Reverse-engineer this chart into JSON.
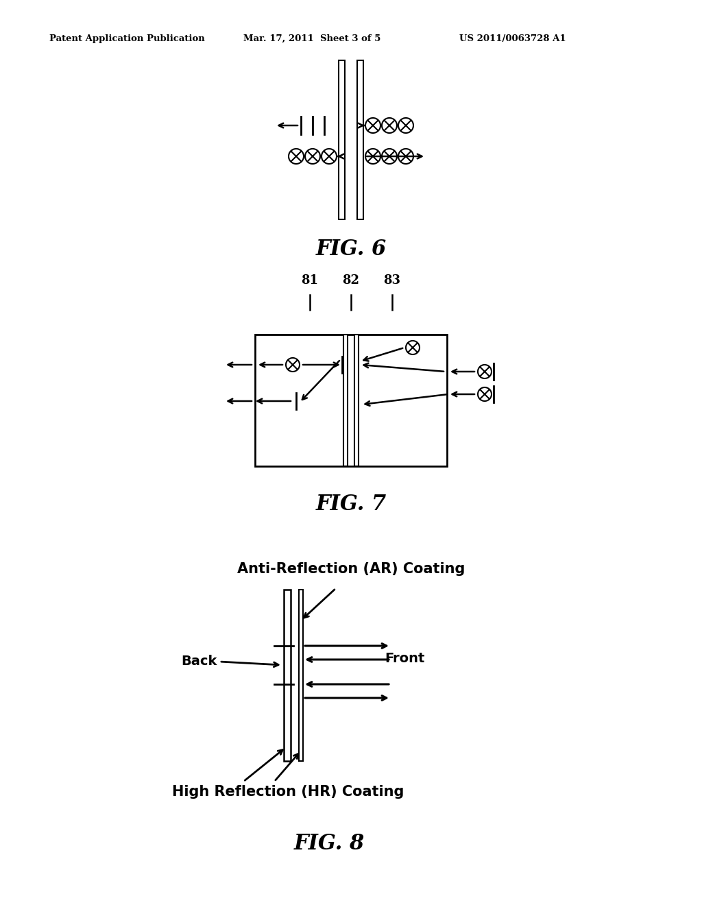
{
  "bg_color": "#ffffff",
  "text_color": "#000000",
  "header_left": "Patent Application Publication",
  "header_center": "Mar. 17, 2011  Sheet 3 of 5",
  "header_right": "US 2011/0063728 A1",
  "fig6_label": "FIG. 6",
  "fig7_label": "FIG. 7",
  "fig8_label": "FIG. 8",
  "fig7_numbers": [
    "81",
    "82",
    "83"
  ],
  "fig8_ar_label": "Anti-Reflection (AR) Coating",
  "fig8_hr_label": "High Reflection (HR) Coating",
  "fig8_back_label": "Back",
  "fig8_front_label": "Front"
}
